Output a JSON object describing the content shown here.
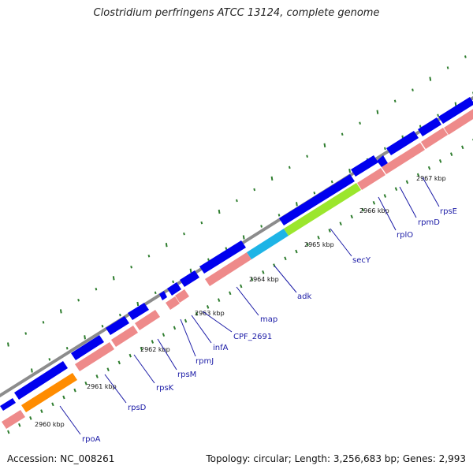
{
  "title": "Clostridium perfringens ATCC 13124, complete genome",
  "footer": {
    "accession": "Accession: NC_008261",
    "summary": "Topology: circular; Length: 3,256,683 bp; Genes: 2,993"
  },
  "colors": {
    "backbone": "#8c8c8c",
    "forward_gene": "#0000ee",
    "feature_pink": "#ee8a8a",
    "tick_green": "#2e7d2e",
    "label_blue": "#1a1aa6",
    "orange": "#ff8c00",
    "cyan": "#1eb4e6",
    "lime": "#9be62d"
  },
  "kbp_labels": [
    "2960 kbp",
    "2961 kbp",
    "2962 kbp",
    "2963 kbp",
    "2964 kbp",
    "2965 kbp",
    "2966 kbp",
    "2967 kbp"
  ],
  "gene_labels": [
    "rpoA",
    "rpsD",
    "rpsK",
    "rpsM",
    "rpmJ",
    "infA",
    "CPF_2691",
    "map",
    "adk",
    "secY",
    "rplO",
    "rpmD",
    "rpsE"
  ]
}
